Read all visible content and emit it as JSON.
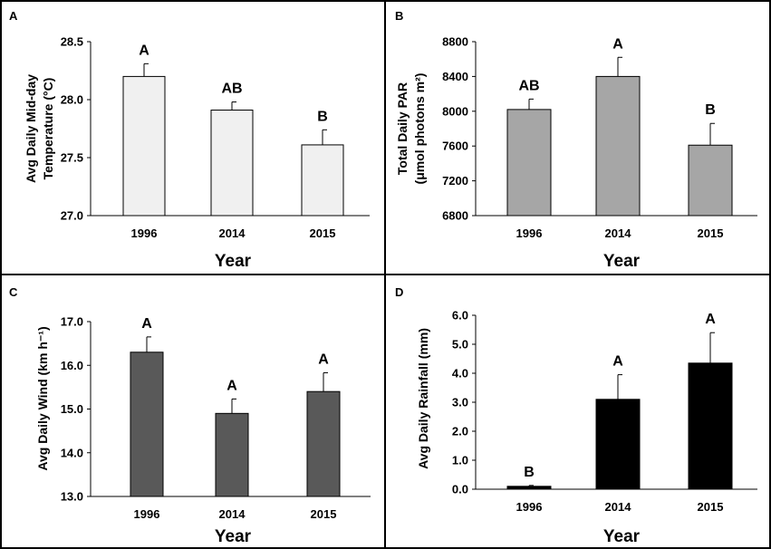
{
  "chart_data": [
    {
      "panel": "A",
      "type": "bar",
      "categories": [
        "1996",
        "2014",
        "2015"
      ],
      "values": [
        28.2,
        27.91,
        27.61
      ],
      "errors": [
        0.11,
        0.07,
        0.13
      ],
      "significance": [
        "A",
        "AB",
        "B"
      ],
      "xlabel": "Year",
      "ylabel_lines": [
        "Avg Daily Mid-day",
        "Temperature (°C)"
      ],
      "ylim": [
        27.0,
        28.5
      ],
      "yticks": [
        27.0,
        27.5,
        28.0,
        28.5
      ],
      "ytick_labels": [
        "27.0",
        "27.5",
        "28.0",
        "28.5"
      ],
      "bar_color": "#f0f0f0"
    },
    {
      "panel": "B",
      "type": "bar",
      "categories": [
        "1996",
        "2014",
        "2015"
      ],
      "values": [
        8020,
        8400,
        7610
      ],
      "errors": [
        120,
        220,
        250
      ],
      "significance": [
        "AB",
        "A",
        "B"
      ],
      "xlabel": "Year",
      "ylabel_lines": [
        "Total Daily PAR",
        "(μmol photons m²)"
      ],
      "ylim": [
        6800,
        8800
      ],
      "yticks": [
        6800,
        7200,
        7600,
        8000,
        8400,
        8800
      ],
      "ytick_labels": [
        "6800",
        "7200",
        "7600",
        "8000",
        "8400",
        "8800"
      ],
      "bar_color": "#a6a6a6"
    },
    {
      "panel": "C",
      "type": "bar",
      "categories": [
        "1996",
        "2014",
        "2015"
      ],
      "values": [
        16.3,
        14.9,
        15.4
      ],
      "errors": [
        0.35,
        0.33,
        0.43
      ],
      "significance": [
        "A",
        "A",
        "A"
      ],
      "xlabel": "Year",
      "ylabel_lines": [
        "Avg Daily Wind (km h⁻¹)"
      ],
      "ylim": [
        13.0,
        17.0
      ],
      "yticks": [
        13.0,
        14.0,
        15.0,
        16.0,
        17.0
      ],
      "ytick_labels": [
        "13.0",
        "14.0",
        "15.0",
        "16.0",
        "17.0"
      ],
      "bar_color": "#595959"
    },
    {
      "panel": "D",
      "type": "bar",
      "categories": [
        "1996",
        "2014",
        "2015"
      ],
      "values": [
        0.1,
        3.1,
        4.35
      ],
      "errors": [
        0.03,
        0.85,
        1.05
      ],
      "significance": [
        "B",
        "A",
        "A"
      ],
      "xlabel": "Year",
      "ylabel_lines": [
        "Avg Daily Rainfall (mm)"
      ],
      "ylim": [
        0.0,
        6.0
      ],
      "yticks": [
        0.0,
        1.0,
        2.0,
        3.0,
        4.0,
        5.0,
        6.0
      ],
      "ytick_labels": [
        "0.0",
        "1.0",
        "2.0",
        "3.0",
        "4.0",
        "5.0",
        "6.0"
      ],
      "bar_color": "#000000"
    }
  ]
}
